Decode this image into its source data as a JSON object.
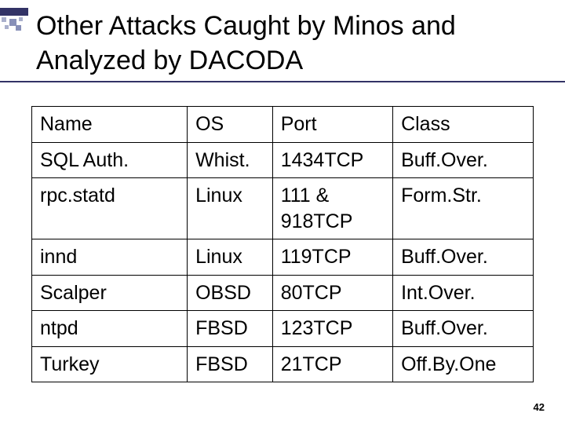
{
  "title": "Other Attacks Caught by Minos and Analyzed by DACODA",
  "page_number": "42",
  "accent_color": "#333366",
  "table": {
    "columns": [
      "Name",
      "OS",
      "Port",
      "Class"
    ],
    "rows": [
      [
        "SQL Auth.",
        "Whist.",
        "1434TCP",
        "Buff.Over."
      ],
      [
        "rpc.statd",
        "Linux",
        "111 & 918TCP",
        "Form.Str."
      ],
      [
        "innd",
        "Linux",
        "119TCP",
        "Buff.Over."
      ],
      [
        "Scalper",
        "OBSD",
        "80TCP",
        "Int.Over."
      ],
      [
        "ntpd",
        "FBSD",
        "123TCP",
        "Buff.Over."
      ],
      [
        "Turkey",
        "FBSD",
        "21TCP",
        "Off.By.One"
      ]
    ]
  }
}
